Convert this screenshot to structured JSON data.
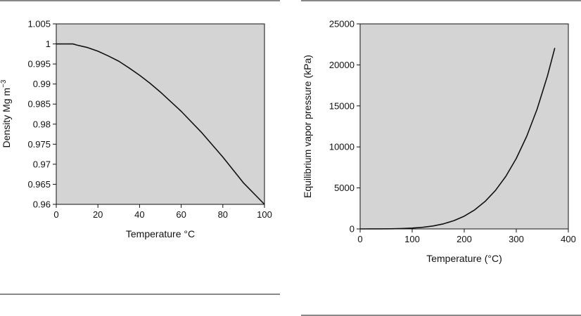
{
  "chart_data": [
    {
      "type": "line",
      "title": "",
      "xlabel": "Temperature °C",
      "ylabel_main": "Density Mg m",
      "ylabel_sup": "−3",
      "xlim": [
        0,
        100
      ],
      "ylim": [
        0.96,
        1.005
      ],
      "x_ticks": [
        0,
        20,
        40,
        60,
        80,
        100
      ],
      "x_tick_labels": [
        "0",
        "20",
        "40",
        "60",
        "80",
        "100"
      ],
      "y_ticks": [
        0.96,
        0.965,
        0.97,
        0.975,
        0.98,
        0.985,
        0.99,
        0.995,
        1,
        1.005
      ],
      "y_tick_labels": [
        "0.96",
        "0.965",
        "0.97",
        "0.975",
        "0.98",
        "0.985",
        "0.99",
        "0.995",
        "1",
        "1.005"
      ],
      "grid": false,
      "background_color": "#d4d4d4",
      "line_color": "#111111",
      "series": [
        {
          "x": [
            0,
            4,
            8,
            10,
            15,
            20,
            25,
            30,
            35,
            40,
            45,
            50,
            60,
            70,
            80,
            90,
            100
          ],
          "y": [
            1.0,
            1.0,
            1.0,
            0.9997,
            0.9991,
            0.9982,
            0.997,
            0.9957,
            0.994,
            0.9922,
            0.9902,
            0.988,
            0.9832,
            0.9778,
            0.9718,
            0.9653,
            0.9583
          ]
        }
      ]
    },
    {
      "type": "line",
      "title": "",
      "xlabel": "Temperature (°C)",
      "ylabel": "Equilibrium vapor pressure (kPa)",
      "xlim": [
        0,
        400
      ],
      "ylim": [
        0,
        25000
      ],
      "x_ticks": [
        0,
        100,
        200,
        300,
        400
      ],
      "x_tick_labels": [
        "0",
        "100",
        "200",
        "300",
        "400"
      ],
      "y_ticks": [
        0,
        5000,
        10000,
        15000,
        20000,
        25000
      ],
      "y_tick_labels": [
        "0",
        "5000",
        "10000",
        "15000",
        "20000",
        "25000"
      ],
      "grid": false,
      "background_color": "#d4d4d4",
      "line_color": "#111111",
      "series": [
        {
          "x": [
            0,
            20,
            40,
            60,
            80,
            100,
            120,
            140,
            160,
            180,
            200,
            220,
            240,
            260,
            280,
            300,
            320,
            340,
            360,
            374
          ],
          "y": [
            1,
            2,
            7,
            20,
            47,
            101,
            199,
            361,
            618,
            1003,
            1555,
            2320,
            3348,
            4694,
            6419,
            8592,
            11290,
            14610,
            18680,
            22060
          ]
        }
      ]
    }
  ]
}
